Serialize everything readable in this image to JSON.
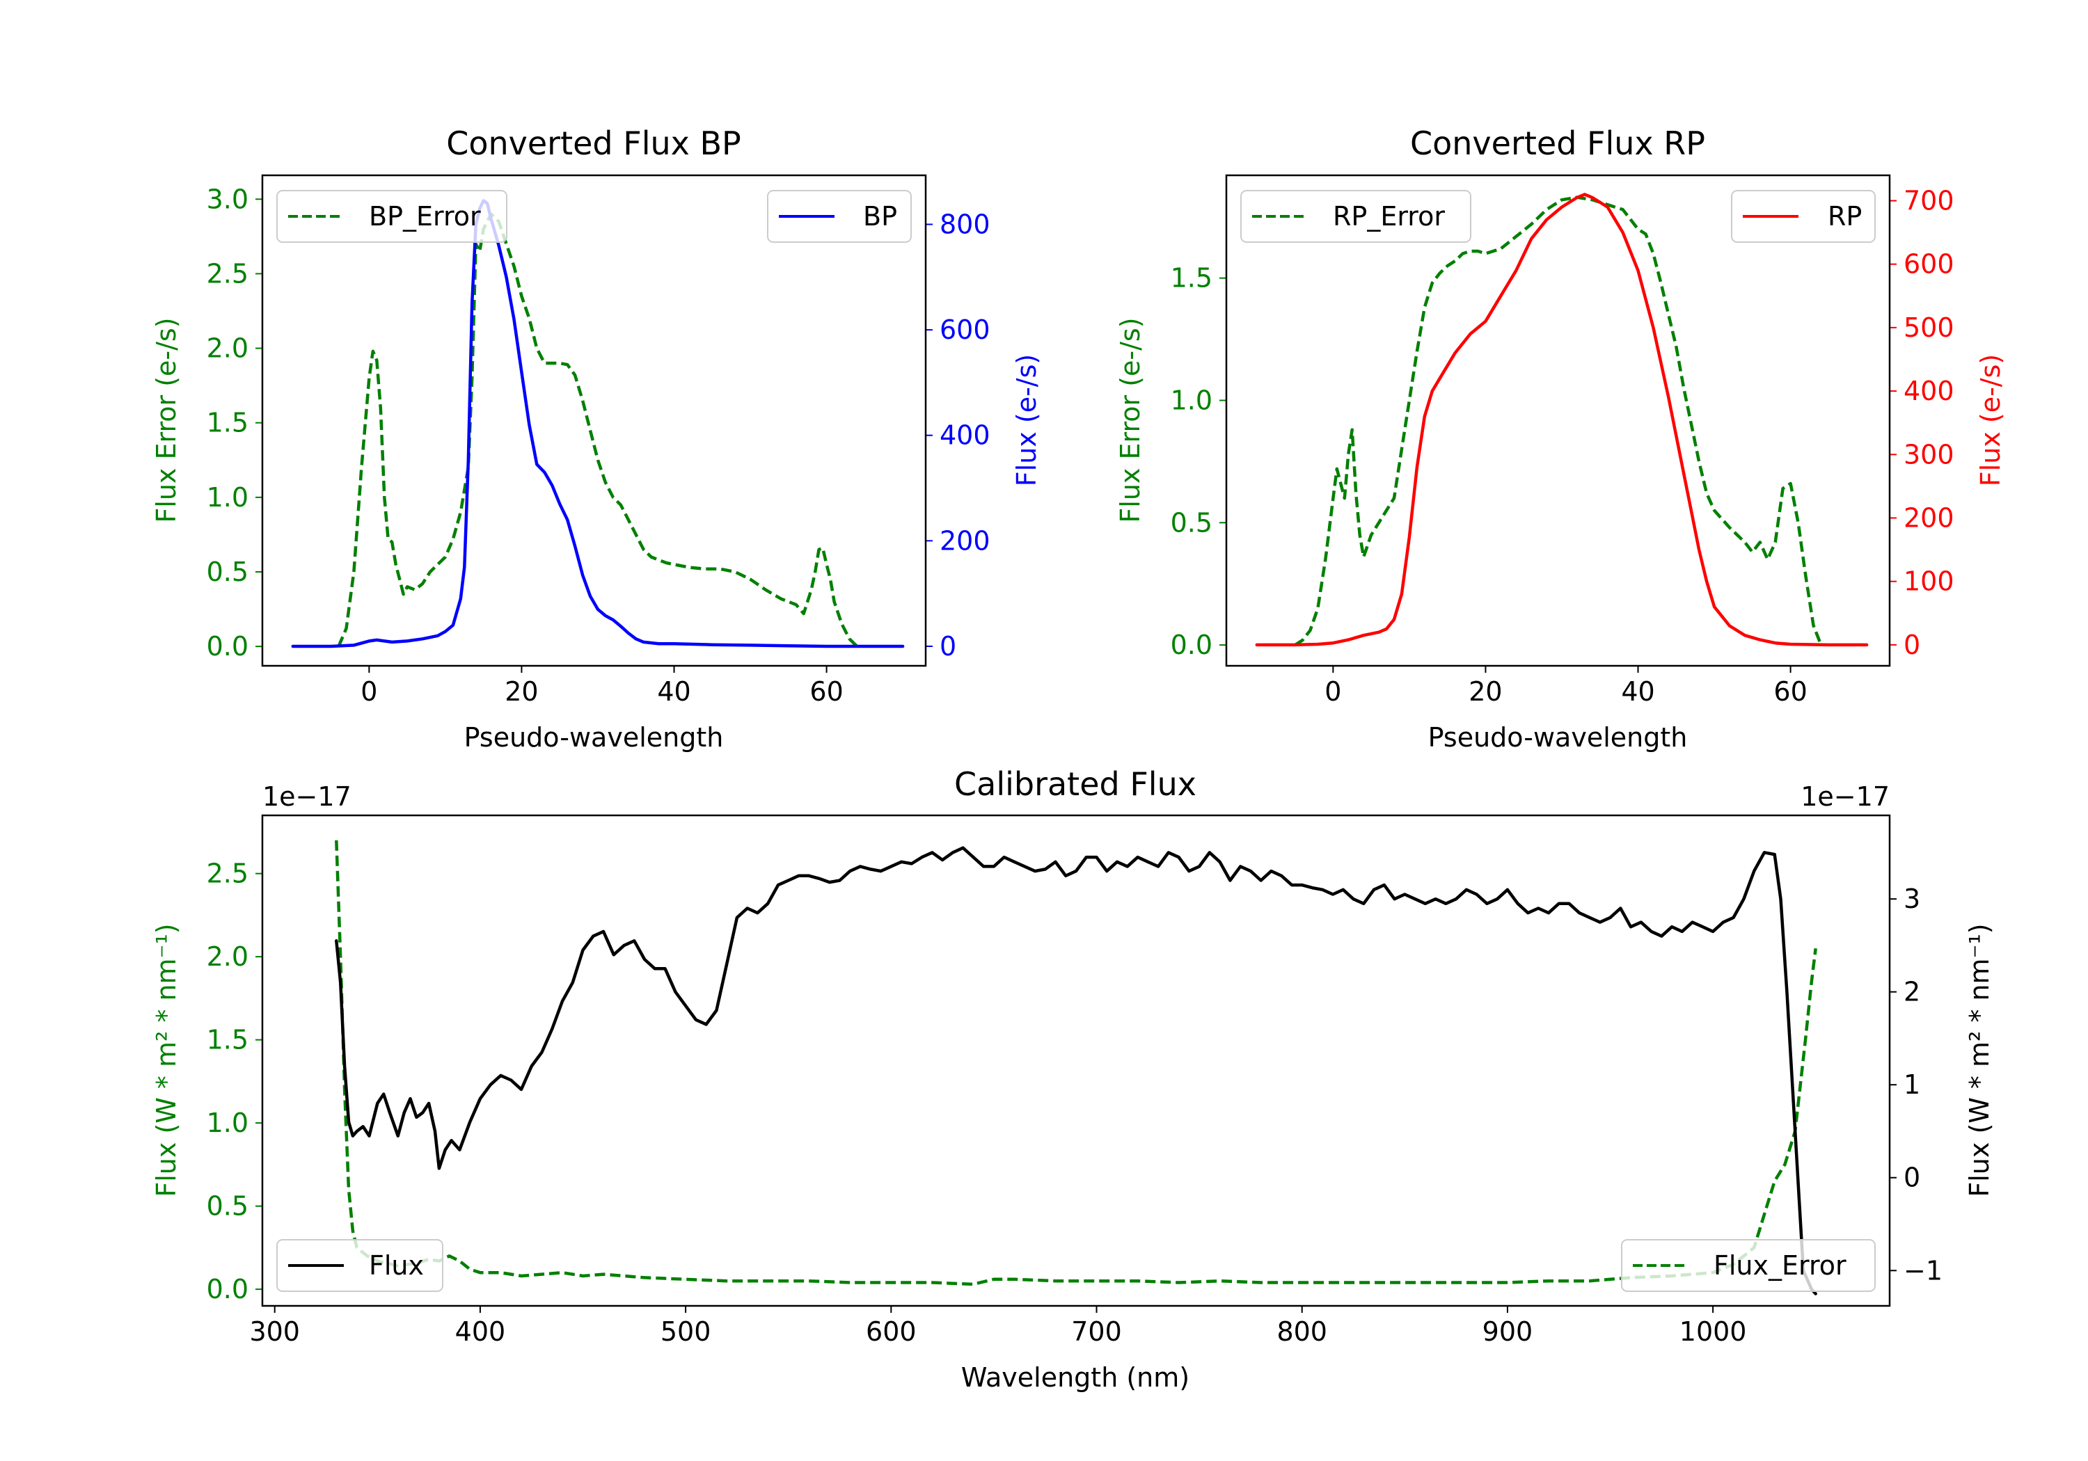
{
  "colors": {
    "bp": "#0000ff",
    "rp": "#ff0000",
    "error": "#008000",
    "flux": "#000000",
    "axis": "#000000",
    "legend_border": "#cccccc"
  },
  "chart_data": [
    {
      "id": "bp",
      "type": "line",
      "title": "Converted Flux BP",
      "xlabel": "Pseudo-wavelength",
      "ylabel_left": "Flux Error (e-/s)",
      "ylabel_right": "Flux (e-/s)",
      "xlim": [
        -14,
        73
      ],
      "ylim_left": [
        -0.13,
        3.16
      ],
      "ylim_right": [
        -37,
        893
      ],
      "xticks": [
        0,
        20,
        40,
        60
      ],
      "xtick_labels": [
        "0",
        "20",
        "40",
        "60"
      ],
      "yticks_left": [
        0.0,
        0.5,
        1.0,
        1.5,
        2.0,
        2.5,
        3.0
      ],
      "ytick_labels_left": [
        "0.0",
        "0.5",
        "1.0",
        "1.5",
        "2.0",
        "2.5",
        "3.0"
      ],
      "yticks_right": [
        0,
        200,
        400,
        600,
        800
      ],
      "ytick_labels_right": [
        "0",
        "200",
        "400",
        "600",
        "800"
      ],
      "legend_left": "BP_Error",
      "legend_right": "BP",
      "series": [
        {
          "name": "BP_Error",
          "axis": "left",
          "style": "dashed",
          "color_key": "error",
          "x": [
            -4,
            -3,
            -2,
            -1,
            0,
            0.5,
            1,
            1.5,
            2,
            2.5,
            3,
            3.5,
            4,
            4.5,
            5,
            6,
            7,
            8,
            9,
            10,
            11,
            12,
            13,
            13.5,
            14,
            14.5,
            15,
            16,
            17,
            18,
            19,
            20,
            21,
            22,
            23,
            24,
            25,
            26,
            27,
            28,
            29,
            30,
            31,
            32,
            33,
            34,
            35,
            36,
            37,
            38,
            39,
            40,
            42,
            44,
            46,
            48,
            50,
            52,
            54,
            56,
            57,
            58,
            58.5,
            59,
            59.5,
            60,
            60.5,
            61,
            62,
            63,
            64
          ],
          "values": [
            0.0,
            0.12,
            0.5,
            1.2,
            1.8,
            1.98,
            1.92,
            1.6,
            1.0,
            0.72,
            0.7,
            0.55,
            0.45,
            0.35,
            0.4,
            0.38,
            0.42,
            0.5,
            0.55,
            0.6,
            0.72,
            0.9,
            1.2,
            1.8,
            2.7,
            2.65,
            2.8,
            2.9,
            2.85,
            2.7,
            2.55,
            2.35,
            2.2,
            2.0,
            1.9,
            1.9,
            1.9,
            1.89,
            1.82,
            1.65,
            1.45,
            1.25,
            1.1,
            1.0,
            0.95,
            0.85,
            0.75,
            0.65,
            0.6,
            0.58,
            0.56,
            0.55,
            0.53,
            0.52,
            0.52,
            0.5,
            0.45,
            0.38,
            0.32,
            0.28,
            0.22,
            0.38,
            0.5,
            0.65,
            0.66,
            0.55,
            0.45,
            0.3,
            0.15,
            0.05,
            0.0
          ]
        },
        {
          "name": "BP",
          "axis": "right",
          "style": "solid",
          "color_key": "bp",
          "x": [
            -10,
            -5,
            -2,
            0,
            1,
            3,
            5,
            7,
            9,
            10,
            11,
            12,
            12.5,
            13,
            13.5,
            14,
            14.5,
            15,
            15.5,
            16,
            17,
            18,
            19,
            20,
            21,
            22,
            23,
            24,
            25,
            26,
            27,
            28,
            29,
            30,
            31,
            32,
            33,
            34,
            35,
            36,
            38,
            40,
            45,
            50,
            55,
            60,
            65,
            70
          ],
          "values": [
            0,
            0,
            2,
            10,
            12,
            8,
            10,
            14,
            20,
            28,
            40,
            90,
            150,
            350,
            650,
            800,
            830,
            845,
            840,
            810,
            760,
            700,
            620,
            520,
            420,
            345,
            330,
            305,
            270,
            240,
            190,
            135,
            95,
            70,
            58,
            50,
            38,
            25,
            14,
            8,
            5,
            5,
            3,
            2,
            1,
            0,
            0,
            0
          ]
        }
      ]
    },
    {
      "id": "rp",
      "type": "line",
      "title": "Converted Flux RP",
      "xlabel": "Pseudo-wavelength",
      "ylabel_left": "Flux Error (e-/s)",
      "ylabel_right": "Flux (e-/s)",
      "xlim": [
        -14,
        73
      ],
      "ylim_left": [
        -0.085,
        1.92
      ],
      "ylim_right": [
        -33,
        740
      ],
      "xticks": [
        0,
        20,
        40,
        60
      ],
      "xtick_labels": [
        "0",
        "20",
        "40",
        "60"
      ],
      "yticks_left": [
        0.0,
        0.5,
        1.0,
        1.5
      ],
      "ytick_labels_left": [
        "0.0",
        "0.5",
        "1.0",
        "1.5"
      ],
      "yticks_right": [
        0,
        100,
        200,
        300,
        400,
        500,
        600,
        700
      ],
      "ytick_labels_right": [
        "0",
        "100",
        "200",
        "300",
        "400",
        "500",
        "600",
        "700"
      ],
      "legend_left": "RP_Error",
      "legend_right": "RP",
      "series": [
        {
          "name": "RP_Error",
          "axis": "left",
          "style": "dashed",
          "color_key": "error",
          "x": [
            -5,
            -4,
            -3,
            -2,
            -1,
            0,
            0.5,
            1,
            1.5,
            2,
            2.5,
            3,
            3.5,
            4,
            5,
            6,
            7,
            8,
            9,
            10,
            11,
            12,
            13,
            14,
            15,
            16,
            17,
            18,
            19,
            20,
            22,
            24,
            26,
            28,
            30,
            32,
            34,
            36,
            38,
            39,
            40,
            41,
            42,
            43,
            44,
            45,
            46,
            47,
            48,
            49,
            50,
            52,
            54,
            55,
            56,
            57,
            58,
            59,
            60,
            61,
            62,
            63,
            64
          ],
          "values": [
            0.0,
            0.02,
            0.06,
            0.15,
            0.35,
            0.6,
            0.72,
            0.66,
            0.6,
            0.78,
            0.88,
            0.62,
            0.45,
            0.36,
            0.45,
            0.5,
            0.55,
            0.6,
            0.8,
            1.0,
            1.2,
            1.38,
            1.48,
            1.52,
            1.55,
            1.57,
            1.6,
            1.61,
            1.61,
            1.6,
            1.62,
            1.67,
            1.72,
            1.78,
            1.82,
            1.83,
            1.82,
            1.8,
            1.78,
            1.74,
            1.7,
            1.68,
            1.6,
            1.48,
            1.35,
            1.22,
            1.05,
            0.9,
            0.75,
            0.62,
            0.55,
            0.48,
            0.42,
            0.38,
            0.42,
            0.35,
            0.42,
            0.64,
            0.66,
            0.5,
            0.28,
            0.08,
            0.0
          ]
        },
        {
          "name": "RP",
          "axis": "right",
          "style": "solid",
          "color_key": "rp",
          "x": [
            -10,
            -5,
            -2,
            0,
            2,
            4,
            6,
            7,
            8,
            9,
            10,
            11,
            12,
            13,
            14,
            16,
            18,
            20,
            22,
            24,
            26,
            28,
            30,
            32,
            33,
            34,
            36,
            38,
            40,
            42,
            44,
            46,
            47,
            48,
            49,
            50,
            52,
            54,
            56,
            58,
            60,
            65,
            70
          ],
          "values": [
            0,
            0,
            1,
            3,
            8,
            15,
            20,
            25,
            40,
            80,
            170,
            280,
            360,
            400,
            420,
            460,
            490,
            510,
            550,
            590,
            640,
            670,
            690,
            705,
            710,
            705,
            690,
            650,
            590,
            500,
            390,
            270,
            210,
            150,
            100,
            60,
            30,
            15,
            8,
            3,
            1,
            0,
            0
          ]
        }
      ]
    },
    {
      "id": "calibrated",
      "type": "line",
      "title": "Calibrated Flux",
      "xlabel": "Wavelength (nm)",
      "ylabel_left": "Flux (W * m² * nm⁻¹)",
      "ylabel_right": "Flux (W * m² * nm⁻¹)",
      "offset_left": "1e−17",
      "offset_right": "1e−17",
      "xlim": [
        294,
        1086
      ],
      "ylim_left": [
        -0.1,
        2.85
      ],
      "ylim_right": [
        -1.38,
        3.9
      ],
      "xticks": [
        300,
        400,
        500,
        600,
        700,
        800,
        900,
        1000
      ],
      "xtick_labels": [
        "300",
        "400",
        "500",
        "600",
        "700",
        "800",
        "900",
        "1000"
      ],
      "yticks_left": [
        0.0,
        0.5,
        1.0,
        1.5,
        2.0,
        2.5
      ],
      "ytick_labels_left": [
        "0.0",
        "0.5",
        "1.0",
        "1.5",
        "2.0",
        "2.5"
      ],
      "yticks_right": [
        -1,
        0,
        1,
        2,
        3
      ],
      "ytick_labels_right": [
        "−1",
        "0",
        "1",
        "2",
        "3"
      ],
      "legend_left": "Flux",
      "legend_right": "Flux_Error",
      "series": [
        {
          "name": "Flux_Error",
          "axis": "left",
          "style": "dashed",
          "color_key": "error",
          "x": [
            330,
            332,
            334,
            336,
            338,
            340,
            345,
            350,
            360,
            370,
            375,
            380,
            385,
            390,
            395,
            400,
            410,
            420,
            430,
            440,
            450,
            460,
            480,
            500,
            520,
            540,
            560,
            580,
            600,
            620,
            640,
            650,
            660,
            680,
            700,
            720,
            740,
            760,
            780,
            800,
            820,
            840,
            860,
            880,
            900,
            920,
            940,
            960,
            980,
            1000,
            1010,
            1020,
            1025,
            1030,
            1035,
            1040,
            1045,
            1048,
            1050
          ],
          "values": [
            2.7,
            2.0,
            1.2,
            0.6,
            0.35,
            0.25,
            0.2,
            0.17,
            0.14,
            0.16,
            0.18,
            0.17,
            0.2,
            0.17,
            0.12,
            0.1,
            0.1,
            0.08,
            0.09,
            0.1,
            0.08,
            0.09,
            0.07,
            0.06,
            0.05,
            0.05,
            0.05,
            0.04,
            0.04,
            0.04,
            0.03,
            0.06,
            0.06,
            0.05,
            0.05,
            0.05,
            0.04,
            0.05,
            0.04,
            0.04,
            0.04,
            0.04,
            0.04,
            0.04,
            0.04,
            0.05,
            0.05,
            0.07,
            0.08,
            0.1,
            0.15,
            0.25,
            0.45,
            0.65,
            0.75,
            0.95,
            1.5,
            1.85,
            2.05
          ]
        },
        {
          "name": "Flux",
          "axis": "right",
          "style": "solid",
          "color_key": "flux",
          "x": [
            330,
            332,
            334,
            336,
            338,
            340,
            343,
            346,
            350,
            353,
            356,
            360,
            363,
            366,
            369,
            372,
            375,
            378,
            380,
            383,
            386,
            390,
            395,
            400,
            405,
            410,
            415,
            420,
            425,
            430,
            435,
            440,
            445,
            450,
            455,
            460,
            465,
            470,
            475,
            480,
            485,
            490,
            495,
            500,
            505,
            510,
            515,
            520,
            525,
            530,
            535,
            540,
            545,
            550,
            555,
            560,
            565,
            570,
            575,
            580,
            585,
            590,
            595,
            600,
            605,
            610,
            615,
            620,
            625,
            630,
            635,
            640,
            645,
            650,
            655,
            660,
            665,
            670,
            675,
            680,
            685,
            690,
            695,
            700,
            705,
            710,
            715,
            720,
            725,
            730,
            735,
            740,
            745,
            750,
            755,
            760,
            765,
            770,
            775,
            780,
            785,
            790,
            795,
            800,
            805,
            810,
            815,
            820,
            825,
            830,
            835,
            840,
            845,
            850,
            855,
            860,
            865,
            870,
            875,
            880,
            885,
            890,
            895,
            900,
            905,
            910,
            915,
            920,
            925,
            930,
            935,
            940,
            945,
            950,
            955,
            960,
            965,
            970,
            975,
            980,
            985,
            990,
            995,
            1000,
            1005,
            1010,
            1015,
            1020,
            1025,
            1030,
            1033,
            1036,
            1040,
            1044,
            1048,
            1050
          ],
          "values": [
            2.55,
            2.1,
            1.2,
            0.6,
            0.45,
            0.5,
            0.55,
            0.45,
            0.8,
            0.9,
            0.7,
            0.45,
            0.7,
            0.85,
            0.65,
            0.7,
            0.8,
            0.5,
            0.1,
            0.3,
            0.4,
            0.3,
            0.6,
            0.85,
            1.0,
            1.1,
            1.05,
            0.95,
            1.2,
            1.35,
            1.6,
            1.9,
            2.1,
            2.45,
            2.6,
            2.65,
            2.4,
            2.5,
            2.55,
            2.35,
            2.25,
            2.25,
            2.0,
            1.85,
            1.7,
            1.65,
            1.8,
            2.3,
            2.8,
            2.9,
            2.85,
            2.95,
            3.15,
            3.2,
            3.25,
            3.25,
            3.22,
            3.18,
            3.2,
            3.3,
            3.35,
            3.32,
            3.3,
            3.35,
            3.4,
            3.38,
            3.45,
            3.5,
            3.42,
            3.5,
            3.55,
            3.45,
            3.35,
            3.35,
            3.45,
            3.4,
            3.35,
            3.3,
            3.32,
            3.4,
            3.25,
            3.3,
            3.45,
            3.45,
            3.3,
            3.4,
            3.35,
            3.45,
            3.4,
            3.35,
            3.5,
            3.45,
            3.3,
            3.35,
            3.5,
            3.4,
            3.2,
            3.35,
            3.3,
            3.2,
            3.3,
            3.25,
            3.15,
            3.15,
            3.12,
            3.1,
            3.05,
            3.1,
            3.0,
            2.95,
            3.1,
            3.15,
            3.0,
            3.05,
            3.0,
            2.95,
            3.0,
            2.95,
            3.0,
            3.1,
            3.05,
            2.95,
            3.0,
            3.1,
            2.95,
            2.85,
            2.9,
            2.85,
            2.95,
            2.95,
            2.85,
            2.8,
            2.75,
            2.8,
            2.9,
            2.7,
            2.75,
            2.65,
            2.6,
            2.7,
            2.65,
            2.75,
            2.7,
            2.65,
            2.75,
            2.8,
            3.0,
            3.3,
            3.5,
            3.48,
            3.0,
            2.0,
            0.5,
            -1.0,
            -1.2,
            -1.25
          ]
        }
      ]
    }
  ]
}
